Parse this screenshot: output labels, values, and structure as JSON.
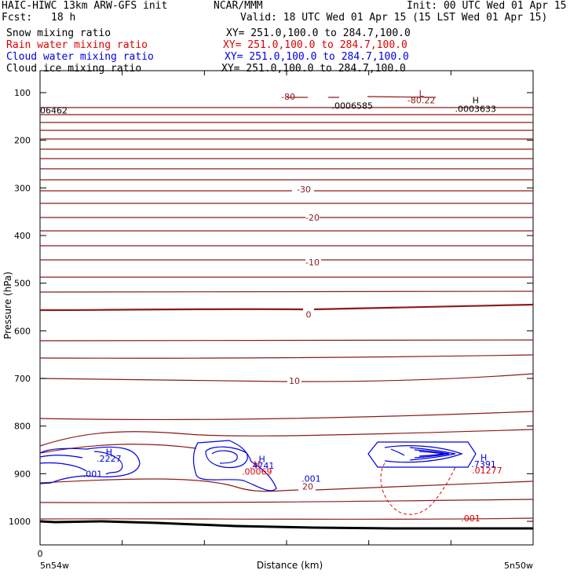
{
  "header": {
    "model": "HAIC-HIWC 13km ARW-GFS init",
    "org": "NCAR/MMM",
    "init": "Init: 00 UTC Wed 01 Apr 15",
    "fcst_label": "Fcst:",
    "fcst_value": "18 h",
    "valid": "Valid: 18 UTC Wed 01 Apr 15 (15 LST Wed 01 Apr 15)",
    "fields": [
      {
        "name": "Snow mixing ratio",
        "xy": "XY= 251.0,100.0 to 284.7,100.0",
        "color": "#000000"
      },
      {
        "name": "Rain water mixing ratio",
        "xy": "XY= 251.0,100.0 to 284.7,100.0",
        "color": "#e00000"
      },
      {
        "name": "Cloud water mixing ratio",
        "xy": "XY= 251.0,100.0 to 284.7,100.0",
        "color": "#0000e0"
      },
      {
        "name": "Cloud ice mixing ratio",
        "xy": "XY= 251.0,100.0 to 284.7,100.0",
        "color": "#000000"
      }
    ]
  },
  "chart_data": {
    "type": "contour",
    "xlabel": "Distance (km)",
    "ylabel": "Pressure (hPa)",
    "x_tick_labels": [
      "0"
    ],
    "x_end_labels": [
      "5n54w",
      "5n50w"
    ],
    "y_ticks": [
      100,
      200,
      300,
      400,
      500,
      600,
      700,
      800,
      900,
      1000
    ],
    "ylim": [
      1050,
      65
    ],
    "temperature_color": "#8b1a1a",
    "temperature_levels": [
      {
        "label": "-80",
        "p": 108
      },
      {
        "label": "-30",
        "p": 303
      },
      {
        "label": "-20",
        "p": 362
      },
      {
        "label": "-10",
        "p": 456
      },
      {
        "label": "0",
        "p": 566
      },
      {
        "label": "10",
        "p": 705
      },
      {
        "label": "20",
        "p": 927
      }
    ],
    "annotations": [
      {
        "text": "06462",
        "x_km": 0,
        "p": 137,
        "color": "#000000"
      },
      {
        "text": ".0006585",
        "x_km": 190,
        "p": 127,
        "color": "#000000"
      },
      {
        "text": "L",
        "x_km": 232,
        "p": 102,
        "color": "#8b1a1a"
      },
      {
        "text": "-80.22",
        "x_km": 232,
        "p": 116,
        "color": "#8b1a1a"
      },
      {
        "text": "H",
        "x_km": 265,
        "p": 116,
        "color": "#000000"
      },
      {
        "text": ".0003633",
        "x_km": 265,
        "p": 134,
        "color": "#000000"
      },
      {
        "text": "H",
        "x_km": 42,
        "p": 854,
        "color": "#0000e0"
      },
      {
        "text": ".2227",
        "x_km": 42,
        "p": 868,
        "color": "#0000e0"
      },
      {
        "text": ".001",
        "x_km": 32,
        "p": 900,
        "color": "#0000e0"
      },
      {
        "text": "H",
        "x_km": 135,
        "p": 869,
        "color": "#0000e0"
      },
      {
        "text": ".4741",
        "x_km": 135,
        "p": 883,
        "color": "#0000e0"
      },
      {
        "text": "H",
        "x_km": 132,
        "p": 880,
        "color": "#e00000"
      },
      {
        "text": ".00069",
        "x_km": 132,
        "p": 895,
        "color": "#e00000"
      },
      {
        "text": ".001",
        "x_km": 165,
        "p": 910,
        "color": "#0000e0"
      },
      {
        "text": "H",
        "x_km": 270,
        "p": 866,
        "color": "#0000e0"
      },
      {
        "text": ".7391",
        "x_km": 270,
        "p": 880,
        "color": "#0000e0"
      },
      {
        "text": ".01277",
        "x_km": 272,
        "p": 893,
        "color": "#e00000"
      },
      {
        "text": ".001",
        "x_km": 262,
        "p": 993,
        "color": "#e00000"
      }
    ]
  }
}
